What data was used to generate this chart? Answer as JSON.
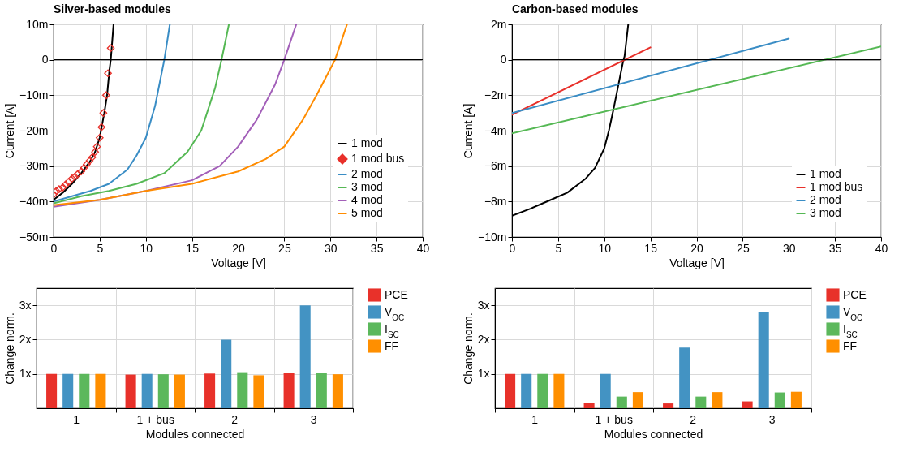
{
  "chart_data": [
    {
      "type": "line",
      "title": "Silver-based modules",
      "xlabel": "Voltage [V]",
      "ylabel": "Current [A]",
      "xlim": [
        0,
        40
      ],
      "xticks": [
        0,
        5,
        10,
        15,
        20,
        25,
        30,
        35,
        40
      ],
      "ylim": [
        -50,
        10
      ],
      "yticks": [
        {
          "value": -50,
          "label": "−50m"
        },
        {
          "value": -40,
          "label": "−40m"
        },
        {
          "value": -30,
          "label": "−30m"
        },
        {
          "value": -20,
          "label": "−20m"
        },
        {
          "value": -10,
          "label": "−10m"
        },
        {
          "value": 0,
          "label": "0"
        },
        {
          "value": 10,
          "label": "10m"
        }
      ],
      "grid": true,
      "legend": "bottom right",
      "ref_lines": [
        {
          "axis": "y",
          "value": 0,
          "color": "#000000"
        }
      ],
      "series": [
        {
          "name": "1 mod",
          "type": "line",
          "color": "#000000",
          "x": [
            0,
            1,
            2,
            3,
            4,
            4.5,
            5,
            5.5,
            5.8,
            6.05,
            6.2,
            6.5
          ],
          "values": [
            -39.5,
            -37.5,
            -35,
            -32,
            -28.5,
            -26,
            -22,
            -15,
            -10,
            -3,
            0,
            10
          ]
        },
        {
          "name": "1 mod bus",
          "type": "scatter",
          "marker": "diamond",
          "color": "#e8302a",
          "x": [
            0,
            0.3,
            0.6,
            1,
            1.3,
            1.6,
            2,
            2.3,
            2.6,
            3,
            3.3,
            3.6,
            3.9,
            4.2,
            4.5,
            4.7,
            5,
            5.2,
            5.4,
            5.7,
            5.9,
            6.2
          ],
          "values": [
            -38,
            -37,
            -36.5,
            -36,
            -35.2,
            -34.5,
            -33.5,
            -33,
            -32.3,
            -31.5,
            -30.5,
            -29.5,
            -28.5,
            -27.5,
            -26,
            -24.5,
            -22,
            -19,
            -15,
            -10,
            -3.8,
            3.3
          ]
        },
        {
          "name": "2 mod",
          "type": "line",
          "color": "#3a8dc5",
          "x": [
            0,
            2,
            4,
            6,
            8,
            9,
            10,
            11,
            12,
            12.6
          ],
          "values": [
            -40,
            -38.5,
            -37,
            -35,
            -31,
            -27,
            -22,
            -13,
            0,
            10
          ]
        },
        {
          "name": "3 mod",
          "type": "line",
          "color": "#55b854",
          "x": [
            0,
            3,
            6,
            9,
            12,
            14.5,
            16,
            17.5,
            18.2,
            19
          ],
          "values": [
            -40.5,
            -38.5,
            -37,
            -35,
            -32,
            -26,
            -20,
            -8,
            0,
            10
          ]
        },
        {
          "name": "4 mod",
          "type": "line",
          "color": "#a360b9",
          "x": [
            0,
            5,
            10,
            15,
            18,
            20,
            22,
            24,
            25,
            26.3
          ],
          "values": [
            -41.5,
            -39.5,
            -37,
            -34,
            -30,
            -24.5,
            -17,
            -7,
            0,
            10
          ]
        },
        {
          "name": "5 mod",
          "type": "line",
          "color": "#ff8c00",
          "x": [
            0,
            5,
            10,
            15,
            20,
            23,
            25,
            27,
            28.5,
            30.5,
            31.8
          ],
          "values": [
            -41,
            -39.5,
            -37,
            -35,
            -31.5,
            -28,
            -24.5,
            -17,
            -10,
            0,
            10
          ]
        }
      ]
    },
    {
      "type": "line",
      "title": "Carbon-based modules",
      "xlabel": "Voltage [V]",
      "ylabel": "Current [A]",
      "xlim": [
        0,
        40
      ],
      "xticks": [
        0,
        5,
        10,
        15,
        20,
        25,
        30,
        35,
        40
      ],
      "ylim": [
        -10,
        2
      ],
      "yticks": [
        {
          "value": -10,
          "label": "−10m"
        },
        {
          "value": -8,
          "label": "−8m"
        },
        {
          "value": -6,
          "label": "−6m"
        },
        {
          "value": -4,
          "label": "−4m"
        },
        {
          "value": -2,
          "label": "−2m"
        },
        {
          "value": 0,
          "label": "0"
        },
        {
          "value": 2,
          "label": "2m"
        }
      ],
      "grid": true,
      "legend": "bottom right",
      "ref_lines": [
        {
          "axis": "y",
          "value": 0,
          "color": "#000000"
        }
      ],
      "series": [
        {
          "name": "1 mod",
          "type": "line",
          "color": "#000000",
          "x": [
            0,
            2,
            4,
            6,
            8,
            9,
            10,
            10.5,
            11,
            11.5,
            12,
            12.2,
            12.6
          ],
          "values": [
            -8.8,
            -8.4,
            -7.95,
            -7.5,
            -6.7,
            -6.1,
            -5,
            -4,
            -2.8,
            -1.5,
            -0.2,
            0.2,
            2
          ]
        },
        {
          "name": "1 mod bus",
          "type": "line",
          "color": "#e8302a",
          "x": [
            0,
            15
          ],
          "values": [
            -3.1,
            0.7
          ]
        },
        {
          "name": "2 mod",
          "type": "line",
          "color": "#3a8dc5",
          "x": [
            0,
            30
          ],
          "values": [
            -3,
            1.2
          ]
        },
        {
          "name": "3 mod",
          "type": "line",
          "color": "#55b854",
          "x": [
            0,
            40
          ],
          "values": [
            -4.15,
            0.75
          ]
        }
      ]
    },
    {
      "type": "bar",
      "xlabel": "Modules connected",
      "ylabel": "Change norm.",
      "categories": [
        "1",
        "1 + bus",
        "2",
        "3"
      ],
      "ylim": [
        0,
        3.5
      ],
      "yticks": [
        {
          "value": 1,
          "label": "1x"
        },
        {
          "value": 2,
          "label": "2x"
        },
        {
          "value": 3,
          "label": "3x"
        }
      ],
      "grid": true,
      "legend": "right",
      "series": [
        {
          "name": "PCE",
          "color": "#e8312a",
          "values": [
            1,
            0.98,
            1.01,
            1.04
          ]
        },
        {
          "name": "V$_{OC}$",
          "color": "#4393c3",
          "values": [
            1,
            1,
            2,
            3
          ]
        },
        {
          "name": "I$_{SC}$",
          "color": "#5cb85c",
          "values": [
            1,
            0.99,
            1.05,
            1.04
          ]
        },
        {
          "name": "FF",
          "color": "#ff8f00",
          "values": [
            1,
            0.98,
            0.96,
            0.99
          ]
        }
      ]
    },
    {
      "type": "bar",
      "xlabel": "Modules connected",
      "ylabel": "Change norm.",
      "categories": [
        "1",
        "1 + bus",
        "2",
        "3"
      ],
      "ylim": [
        0,
        3.5
      ],
      "yticks": [
        {
          "value": 1,
          "label": "1x"
        },
        {
          "value": 2,
          "label": "2x"
        },
        {
          "value": 3,
          "label": "3x"
        }
      ],
      "grid": true,
      "legend": "right",
      "series": [
        {
          "name": "PCE",
          "color": "#e8312a",
          "values": [
            1,
            0.16,
            0.14,
            0.2
          ]
        },
        {
          "name": "V$_{OC}$",
          "color": "#4393c3",
          "values": [
            1,
            1,
            1.77,
            2.79
          ]
        },
        {
          "name": "I$_{SC}$",
          "color": "#5cb85c",
          "values": [
            1,
            0.34,
            0.34,
            0.46
          ]
        },
        {
          "name": "FF",
          "color": "#ff8f00",
          "values": [
            1,
            0.47,
            0.47,
            0.48
          ]
        }
      ]
    }
  ]
}
